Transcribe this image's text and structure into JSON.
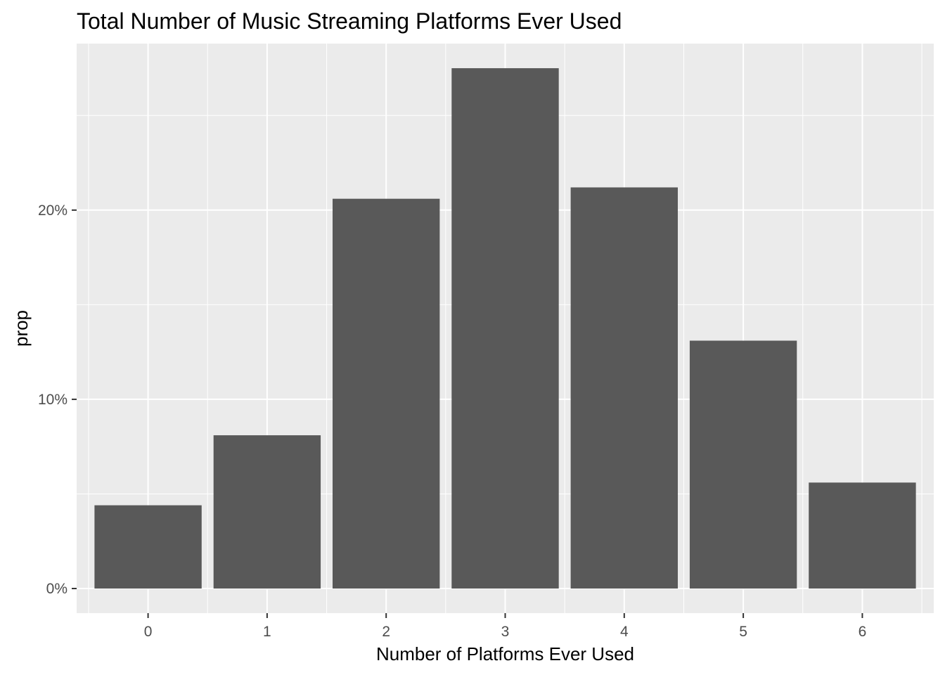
{
  "chart_data": {
    "type": "bar",
    "title": "Total Number of Music Streaming Platforms Ever Used",
    "xlabel": "Number of Platforms Ever Used",
    "ylabel": "prop",
    "categories": [
      "0",
      "1",
      "2",
      "3",
      "4",
      "5",
      "6"
    ],
    "values": [
      4.4,
      8.1,
      20.6,
      27.5,
      21.2,
      13.1,
      5.6
    ],
    "value_unit": "%",
    "ylim": [
      -1.3,
      28.8
    ],
    "y_ticks": [
      0,
      10,
      20
    ],
    "y_tick_labels": [
      "0%",
      "10%",
      "20%"
    ],
    "grid": true,
    "legend": "none",
    "colors": {
      "bar": "#595959",
      "panel": "#ebebeb",
      "grid": "#ffffff",
      "tick_text": "#4d4d4d",
      "tick_mark": "#333333"
    }
  }
}
